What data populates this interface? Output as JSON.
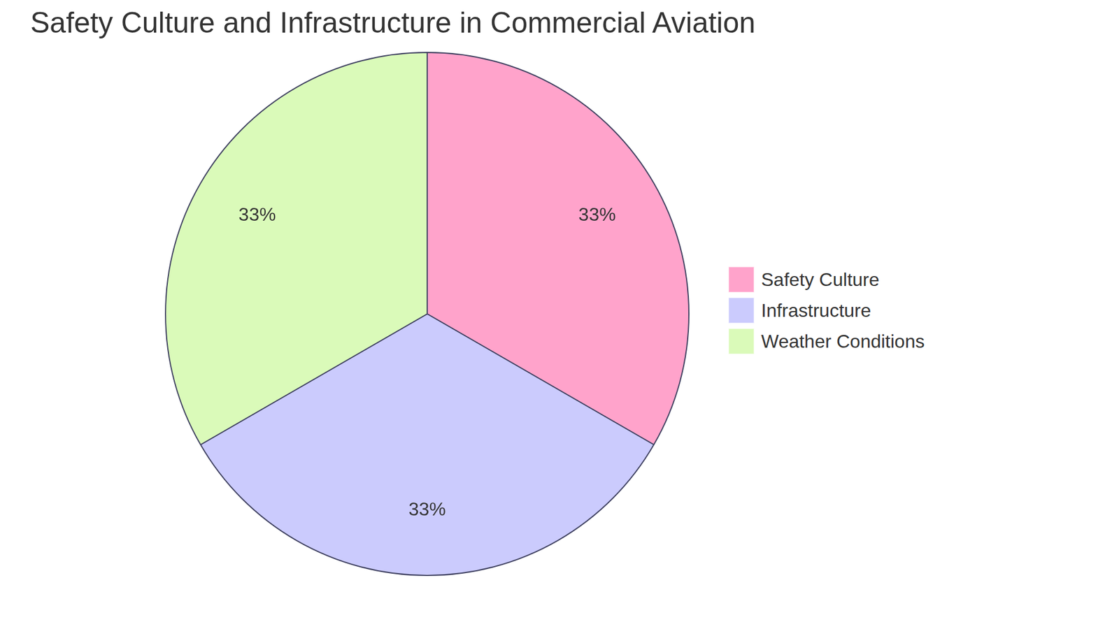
{
  "chart_data": {
    "type": "pie",
    "title": "Safety Culture and Infrastructure in Commercial Aviation",
    "categories": [
      "Safety Culture",
      "Infrastructure",
      "Weather Conditions"
    ],
    "values": [
      33,
      33,
      33
    ],
    "value_labels": [
      "33%",
      "33%",
      "33%"
    ],
    "colors": [
      "#ffa3cb",
      "#cbcbfd",
      "#dafab9"
    ],
    "data_labels": true,
    "legend": "right"
  }
}
